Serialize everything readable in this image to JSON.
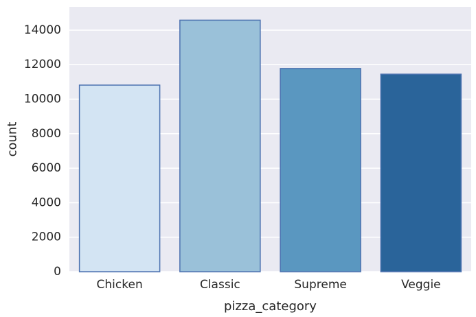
{
  "chart_data": {
    "type": "bar",
    "title": "",
    "xlabel": "pizza_category",
    "ylabel": "count",
    "categories": [
      "Chicken",
      "Classic",
      "Supreme",
      "Veggie"
    ],
    "values": [
      10815,
      14579,
      11777,
      11449
    ],
    "ylim": [
      0,
      15350
    ],
    "yticks": [
      0,
      2000,
      4000,
      6000,
      8000,
      10000,
      12000,
      14000
    ],
    "grid": true,
    "legend": "none",
    "colors": {
      "background": "#eaeaf2",
      "grid": "#ffffff",
      "bar_edge": "#4c72b0",
      "bars": [
        "#d3e4f3",
        "#9ac1d9",
        "#5a97c0",
        "#2a649a"
      ]
    }
  }
}
